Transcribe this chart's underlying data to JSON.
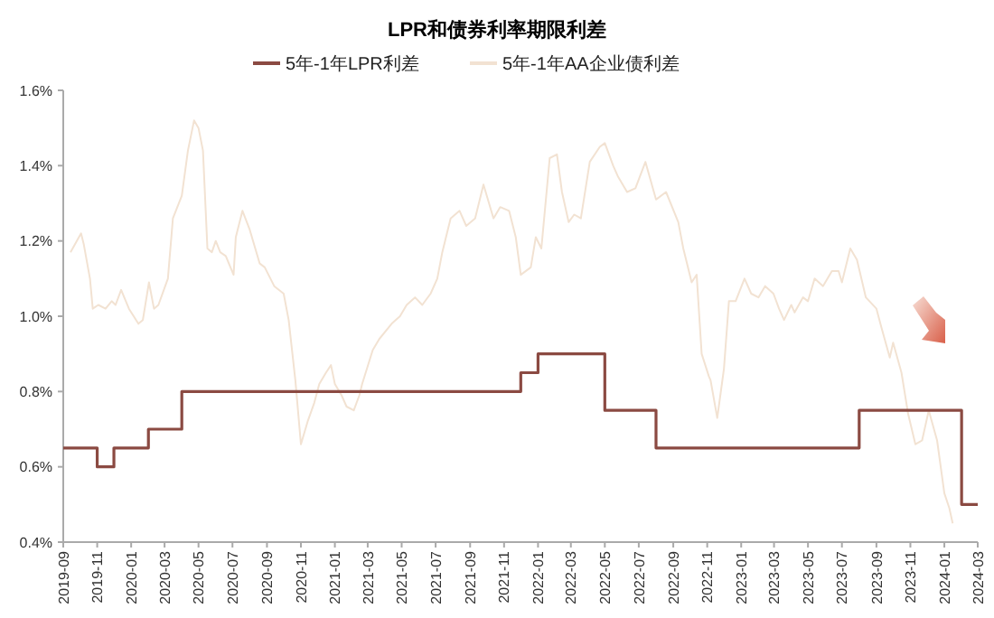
{
  "chart_data": {
    "type": "line",
    "title": "LPR和债券利率期限利差",
    "legend": "top",
    "grid": false,
    "xlim": [
      "2019-09-01",
      "2024-03-01"
    ],
    "xticks": [
      "2019-09",
      "2019-11",
      "2020-01",
      "2020-03",
      "2020-05",
      "2020-07",
      "2020-09",
      "2020-11",
      "2021-01",
      "2021-03",
      "2021-05",
      "2021-07",
      "2021-09",
      "2021-11",
      "2022-01",
      "2022-03",
      "2022-05",
      "2022-07",
      "2022-09",
      "2022-11",
      "2023-01",
      "2023-03",
      "2023-05",
      "2023-07",
      "2023-09",
      "2023-11",
      "2024-01",
      "2024-03"
    ],
    "ylim": [
      0.4,
      1.6
    ],
    "yticks": [
      {
        "value": 0.4,
        "label": "0.4%"
      },
      {
        "value": 0.6,
        "label": "0.6%"
      },
      {
        "value": 0.8,
        "label": "0.8%"
      },
      {
        "value": 1.0,
        "label": "1.0%"
      },
      {
        "value": 1.2,
        "label": "1.2%"
      },
      {
        "value": 1.4,
        "label": "1.4%"
      },
      {
        "value": 1.6,
        "label": "1.6%"
      }
    ],
    "series": [
      {
        "name": "5年-1年LPR利差",
        "type": "step",
        "color": "#8b4a42",
        "x": [
          "2019-09-01",
          "2019-11-01",
          "2019-12-01",
          "2020-02-01",
          "2020-04-01",
          "2021-12-01",
          "2022-01-01",
          "2022-05-01",
          "2022-08-01",
          "2023-08-01",
          "2024-02-01",
          "2024-03-01"
        ],
        "values": [
          0.65,
          0.6,
          0.65,
          0.7,
          0.8,
          0.85,
          0.9,
          0.75,
          0.65,
          0.75,
          0.5,
          0.5
        ]
      },
      {
        "name": "5年-1年AA企业债利差",
        "type": "line",
        "color": "#f2e2d2",
        "x": [
          "2019-09-14",
          "2019-10-03",
          "2019-10-08",
          "2019-10-19",
          "2019-10-24",
          "2019-11-03",
          "2019-11-16",
          "2019-11-27",
          "2019-12-04",
          "2019-12-14",
          "2019-12-28",
          "2020-01-14",
          "2020-01-22",
          "2020-02-02",
          "2020-02-11",
          "2020-02-19",
          "2020-03-07",
          "2020-03-16",
          "2020-04-01",
          "2020-04-12",
          "2020-04-23",
          "2020-05-01",
          "2020-05-09",
          "2020-05-17",
          "2020-05-25",
          "2020-06-01",
          "2020-06-09",
          "2020-06-19",
          "2020-07-03",
          "2020-07-07",
          "2020-07-19",
          "2020-08-01",
          "2020-08-19",
          "2020-08-28",
          "2020-09-14",
          "2020-10-01",
          "2020-10-10",
          "2020-10-22",
          "2020-11-01",
          "2020-11-13",
          "2020-11-25",
          "2020-12-04",
          "2020-12-16",
          "2020-12-25",
          "2021-01-01",
          "2021-01-13",
          "2021-01-22",
          "2021-02-04",
          "2021-02-14",
          "2021-02-19",
          "2021-03-10",
          "2021-03-22",
          "2021-04-13",
          "2021-04-28",
          "2021-05-10",
          "2021-05-25",
          "2021-06-07",
          "2021-06-22",
          "2021-07-04",
          "2021-07-13",
          "2021-07-28",
          "2021-08-13",
          "2021-08-25",
          "2021-09-10",
          "2021-09-25",
          "2021-10-13",
          "2021-10-25",
          "2021-11-10",
          "2021-11-22",
          "2021-12-01",
          "2021-12-19",
          "2021-12-28",
          "2022-01-07",
          "2022-01-22",
          "2022-02-04",
          "2022-02-13",
          "2022-02-25",
          "2022-03-07",
          "2022-03-19",
          "2022-04-04",
          "2022-04-22",
          "2022-05-01",
          "2022-05-16",
          "2022-05-25",
          "2022-06-10",
          "2022-06-25",
          "2022-07-13",
          "2022-08-01",
          "2022-08-19",
          "2022-09-10",
          "2022-09-19",
          "2022-10-04",
          "2022-10-13",
          "2022-10-22",
          "2022-11-04",
          "2022-11-07",
          "2022-11-19",
          "2022-12-01",
          "2022-12-10",
          "2022-12-22",
          "2023-01-07",
          "2023-01-19",
          "2023-02-01",
          "2023-02-13",
          "2023-02-28",
          "2023-03-10",
          "2023-03-19",
          "2023-04-01",
          "2023-04-07",
          "2023-04-22",
          "2023-05-01",
          "2023-05-13",
          "2023-05-28",
          "2023-06-13",
          "2023-06-25",
          "2023-07-01",
          "2023-07-16",
          "2023-07-28",
          "2023-08-13",
          "2023-09-01",
          "2023-09-10",
          "2023-09-25",
          "2023-10-01",
          "2023-10-16",
          "2023-10-28",
          "2023-11-10",
          "2023-11-22",
          "2023-12-04",
          "2023-12-19",
          "2024-01-01",
          "2024-01-10",
          "2024-01-16"
        ],
        "values": [
          1.17,
          1.22,
          1.19,
          1.1,
          1.02,
          1.03,
          1.02,
          1.04,
          1.03,
          1.07,
          1.02,
          0.98,
          0.99,
          1.09,
          1.02,
          1.03,
          1.1,
          1.26,
          1.32,
          1.44,
          1.52,
          1.5,
          1.44,
          1.18,
          1.17,
          1.2,
          1.17,
          1.16,
          1.11,
          1.21,
          1.28,
          1.23,
          1.14,
          1.13,
          1.08,
          1.06,
          0.99,
          0.83,
          0.66,
          0.72,
          0.77,
          0.82,
          0.85,
          0.87,
          0.82,
          0.79,
          0.76,
          0.75,
          0.79,
          0.82,
          0.91,
          0.94,
          0.98,
          1.0,
          1.03,
          1.05,
          1.03,
          1.06,
          1.1,
          1.17,
          1.26,
          1.28,
          1.24,
          1.26,
          1.35,
          1.26,
          1.29,
          1.28,
          1.21,
          1.11,
          1.13,
          1.21,
          1.18,
          1.42,
          1.43,
          1.33,
          1.25,
          1.27,
          1.26,
          1.41,
          1.45,
          1.46,
          1.4,
          1.37,
          1.33,
          1.34,
          1.41,
          1.31,
          1.33,
          1.25,
          1.18,
          1.09,
          1.11,
          0.9,
          0.84,
          0.83,
          0.73,
          0.86,
          1.04,
          1.04,
          1.1,
          1.06,
          1.05,
          1.08,
          1.06,
          1.02,
          0.99,
          1.03,
          1.01,
          1.05,
          1.04,
          1.1,
          1.08,
          1.12,
          1.12,
          1.09,
          1.18,
          1.15,
          1.05,
          1.02,
          0.97,
          0.89,
          0.93,
          0.85,
          0.74,
          0.66,
          0.67,
          0.75,
          0.67,
          0.53,
          0.49,
          0.45
        ]
      }
    ]
  }
}
